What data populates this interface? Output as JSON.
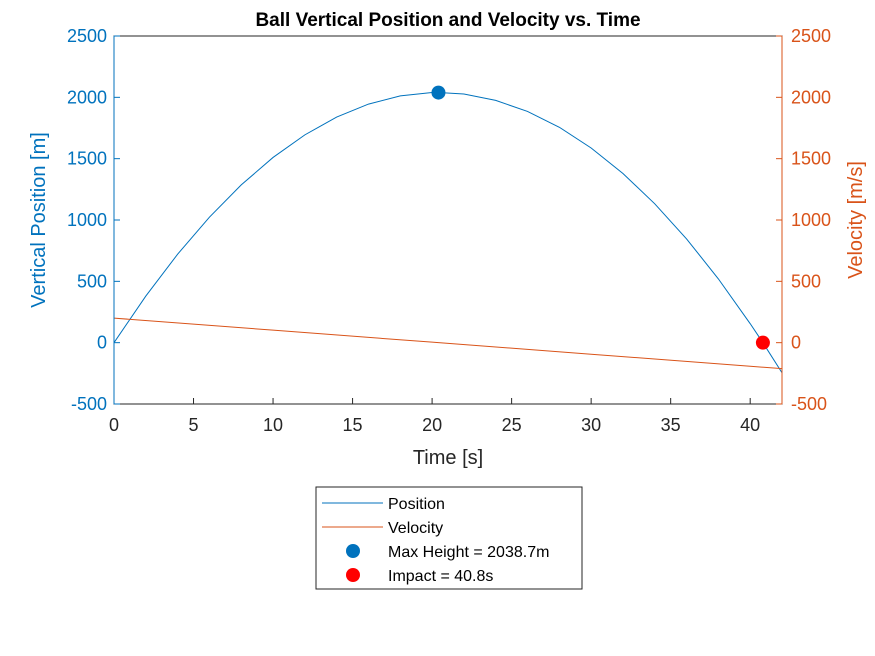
{
  "chart_data": {
    "type": "line",
    "title": "Ball Vertical Position and Velocity vs. Time",
    "xlabel": "Time [s]",
    "ylabel_left": "Vertical Position [m]",
    "ylabel_right": "Velocity [m/s]",
    "xlim": [
      0,
      42
    ],
    "ylim_left": [
      -500,
      2500
    ],
    "ylim_right": [
      -500,
      2500
    ],
    "x_ticks": [
      "0",
      "5",
      "10",
      "15",
      "20",
      "25",
      "30",
      "35",
      "40"
    ],
    "y_ticks_left": [
      "-500",
      "0",
      "500",
      "1000",
      "1500",
      "2000",
      "2500"
    ],
    "y_ticks_right": [
      "-500",
      "0",
      "500",
      "1000",
      "1500",
      "2000",
      "2500"
    ],
    "grid": false,
    "legend_placement": "below",
    "colors": {
      "position": "#0072bd",
      "velocity": "#d95319",
      "max_marker": "#0072bd",
      "impact_marker": "#ff0000",
      "axis_left": "#0072bd",
      "axis_right": "#d95319",
      "axis_bottom": "#262626"
    },
    "series": [
      {
        "name": "Position",
        "axis": "left",
        "x": [
          0,
          2,
          4,
          6,
          8,
          10,
          12,
          14,
          16,
          18,
          20,
          20.4,
          22,
          24,
          26,
          28,
          30,
          32,
          34,
          36,
          38,
          40,
          40.8,
          42
        ],
        "y": [
          0,
          380,
          721,
          1023,
          1286,
          1510,
          1694,
          1839,
          1945,
          2012,
          2039,
          2039,
          2027,
          1975,
          1885,
          1756,
          1587,
          1379,
          1132,
          846,
          520,
          155,
          0,
          -245
        ]
      },
      {
        "name": "Velocity",
        "axis": "right",
        "x": [
          0,
          10,
          20,
          20.4,
          30,
          40,
          42
        ],
        "y": [
          200,
          102,
          4,
          0,
          -94,
          -192,
          -212
        ]
      }
    ],
    "markers": [
      {
        "name": "Max Height = 2038.7m",
        "x": 20.4,
        "y": 2038.7,
        "axis": "left"
      },
      {
        "name": "Impact = 40.8s",
        "x": 40.8,
        "y": 0,
        "axis": "left"
      }
    ]
  }
}
